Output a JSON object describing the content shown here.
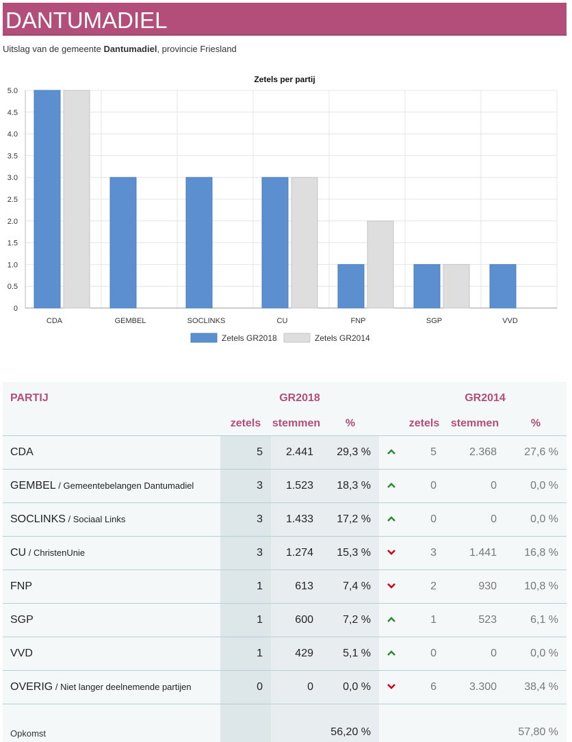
{
  "header": {
    "title": "DANTUMADIEL"
  },
  "subtitle": {
    "prefix": "Uitslag van de gemeente ",
    "municipality": "Dantumadiel",
    "suffix": ", provincie Friesland"
  },
  "chart_data": {
    "type": "bar",
    "title": "Zetels per partij",
    "categories": [
      "CDA",
      "GEMBEL",
      "SOCLINKS",
      "CU",
      "FNP",
      "SGP",
      "VVD"
    ],
    "series": [
      {
        "name": "Zetels GR2018",
        "values": [
          5,
          3,
          3,
          3,
          1,
          1,
          1
        ],
        "color": "#5b8fd0"
      },
      {
        "name": "Zetels GR2014",
        "values": [
          5,
          0,
          0,
          3,
          2,
          1,
          0
        ],
        "color": "#dedede"
      }
    ],
    "ylim": [
      0,
      5
    ],
    "yticks": [
      "0",
      "0.5",
      "1.0",
      "1.5",
      "2.0",
      "2.5",
      "3.0",
      "3.5",
      "4.0",
      "4.5",
      "5.0"
    ],
    "grid": true,
    "legend": "bottom"
  },
  "table": {
    "party_header": "PARTIJ",
    "gr2018_header": "GR2018",
    "gr2014_header": "GR2014",
    "col_zetels": "zetels",
    "col_stemmen": "stemmen",
    "col_pct": "%",
    "rows": [
      {
        "abbr": "CDA",
        "full": "",
        "z18": "5",
        "s18": "2.441",
        "p18": "29,3 %",
        "trend": "up",
        "z14": "5",
        "s14": "2.368",
        "p14": "27,6 %"
      },
      {
        "abbr": "GEMBEL",
        "full": " / Gemeentebelangen Dantumadiel",
        "z18": "3",
        "s18": "1.523",
        "p18": "18,3 %",
        "trend": "up",
        "z14": "0",
        "s14": "0",
        "p14": "0,0 %"
      },
      {
        "abbr": "SOCLINKS",
        "full": " / Sociaal Links",
        "z18": "3",
        "s18": "1.433",
        "p18": "17,2 %",
        "trend": "up",
        "z14": "0",
        "s14": "0",
        "p14": "0,0 %"
      },
      {
        "abbr": "CU",
        "full": " / ChristenUnie",
        "z18": "3",
        "s18": "1.274",
        "p18": "15,3 %",
        "trend": "down",
        "z14": "3",
        "s14": "1.441",
        "p14": "16,8 %"
      },
      {
        "abbr": "FNP",
        "full": "",
        "z18": "1",
        "s18": "613",
        "p18": "7,4 %",
        "trend": "down",
        "z14": "2",
        "s14": "930",
        "p14": "10,8 %"
      },
      {
        "abbr": "SGP",
        "full": "",
        "z18": "1",
        "s18": "600",
        "p18": "7,2 %",
        "trend": "up",
        "z14": "1",
        "s14": "523",
        "p14": "6,1 %"
      },
      {
        "abbr": "VVD",
        "full": "",
        "z18": "1",
        "s18": "429",
        "p18": "5,1 %",
        "trend": "up",
        "z14": "0",
        "s14": "0",
        "p14": "0,0 %"
      },
      {
        "abbr": "OVERIG",
        "full": " / Niet langer deelnemende partijen",
        "z18": "0",
        "s18": "0",
        "p18": "0,0 %",
        "trend": "down",
        "z14": "6",
        "s14": "3.300",
        "p14": "38,4 %"
      }
    ],
    "footer": {
      "label": "Opkomst",
      "turnout18": "56,20 %",
      "turnout14": "57,80 %"
    },
    "colors": {
      "up": "#2e8b2e",
      "down": "#d0021b",
      "accent": "#b34d7a"
    }
  }
}
